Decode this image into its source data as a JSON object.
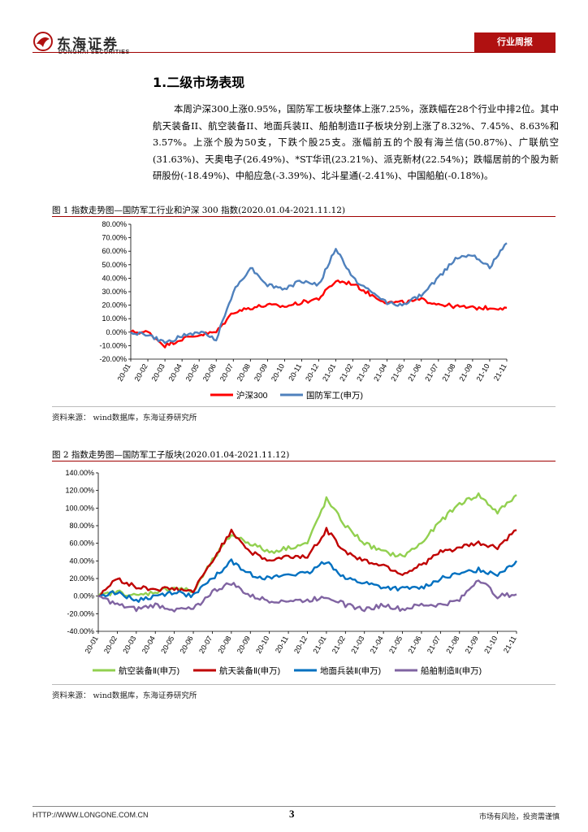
{
  "header": {
    "logo_cn": "东海证券",
    "logo_en": "DONGHAI SECURITIES",
    "tag": "行业周报"
  },
  "section": {
    "title": "1.二级市场表现",
    "paragraph": "本周沪深300上涨0.95%，国防军工板块整体上涨7.25%，涨跌幅在28个行业中排2位。其中航天装备II、航空装备II、地面兵装II、船舶制造II子板块分别上涨了8.32%、7.45%、8.63%和3.57%。上涨个股为50支，下跌个股25支。涨幅前五的个股有海兰信(50.87%)、广联航空(31.63%)、天奥电子(26.49%)、*ST华讯(23.21%)、派克新材(22.54%)；跌幅居前的个股为新研股份(-18.49%)、中船应急(-3.39%)、北斗星通(-2.41%)、中国船舶(-0.18%)。"
  },
  "figure1": {
    "title": "图 1  指数走势图—国防军工行业和沪深 300 指数(2020.01.04-2021.11.12)",
    "source": "资料来源：  wind数据库，东海证券研究所"
  },
  "figure2": {
    "title": "图 2  指数走势图—国防军工子版块(2020.01.04-2021.11.12)",
    "source": "资料来源：  wind数据库，东海证券研究所"
  },
  "chart_data": [
    {
      "type": "line",
      "title": "指数走势图—国防军工行业和沪深300指数",
      "ylim": [
        -20,
        80
      ],
      "yticks": [
        "-20.00%",
        "-10.00%",
        "0.00%",
        "10.00%",
        "20.00%",
        "30.00%",
        "40.00%",
        "50.00%",
        "60.00%",
        "70.00%",
        "80.00%"
      ],
      "categories": [
        "20-01",
        "20-02",
        "20-03",
        "20-04",
        "20-05",
        "20-06",
        "20-07",
        "20-08",
        "20-09",
        "20-10",
        "20-11",
        "20-12",
        "21-01",
        "21-02",
        "21-03",
        "21-04",
        "21-05",
        "21-06",
        "21-07",
        "21-08",
        "21-09",
        "21-10",
        "21-11"
      ],
      "colors": [
        "#ff0000",
        "#4f81bd"
      ],
      "series": [
        {
          "name": "沪深300",
          "values": [
            0,
            0,
            -10,
            -5,
            -2,
            0,
            15,
            18,
            20,
            19,
            22,
            25,
            38,
            36,
            28,
            22,
            22,
            24,
            21,
            19,
            18,
            18,
            18
          ]
        },
        {
          "name": "国防军工(申万)",
          "values": [
            0,
            -2,
            -8,
            -3,
            0,
            -5,
            30,
            48,
            35,
            32,
            38,
            35,
            62,
            40,
            30,
            22,
            20,
            28,
            40,
            55,
            58,
            48,
            66
          ]
        }
      ]
    },
    {
      "type": "line",
      "title": "指数走势图—国防军工子版块",
      "ylim": [
        -40,
        140
      ],
      "yticks": [
        "-40.00%",
        "-20.00%",
        "0.00%",
        "20.00%",
        "40.00%",
        "60.00%",
        "80.00%",
        "100.00%",
        "120.00%",
        "140.00%"
      ],
      "categories": [
        "20-01",
        "20-02",
        "20-03",
        "20-04",
        "20-05",
        "20-06",
        "20-07",
        "20-08",
        "20-09",
        "20-10",
        "20-11",
        "20-12",
        "21-01",
        "21-02",
        "21-03",
        "21-04",
        "21-05",
        "21-06",
        "21-07",
        "21-08",
        "21-09",
        "21-10",
        "21-11"
      ],
      "colors": [
        "#92d050",
        "#c00000",
        "#0070c0",
        "#8064a2"
      ],
      "series": [
        {
          "name": "航空装备Ⅱ(申万)",
          "values": [
            0,
            5,
            0,
            5,
            10,
            5,
            40,
            70,
            60,
            50,
            55,
            60,
            110,
            80,
            60,
            50,
            45,
            60,
            85,
            105,
            115,
            95,
            115
          ]
        },
        {
          "name": "航天装备Ⅱ(申万)",
          "values": [
            0,
            20,
            10,
            8,
            8,
            5,
            40,
            75,
            50,
            40,
            45,
            45,
            75,
            50,
            40,
            35,
            25,
            35,
            50,
            55,
            60,
            55,
            75
          ]
        },
        {
          "name": "地面兵装Ⅱ(申万)",
          "values": [
            0,
            5,
            -5,
            0,
            5,
            0,
            20,
            40,
            25,
            20,
            25,
            25,
            40,
            20,
            15,
            10,
            8,
            10,
            20,
            25,
            30,
            25,
            40
          ]
        },
        {
          "name": "船舶制造Ⅱ(申万)",
          "values": [
            0,
            -10,
            -15,
            -10,
            -15,
            -15,
            5,
            15,
            0,
            -5,
            -5,
            -5,
            0,
            -10,
            -15,
            -10,
            -15,
            -10,
            -10,
            -5,
            20,
            0,
            2
          ]
        }
      ]
    }
  ],
  "footer": {
    "url": "HTTP://WWW.LONGONE.COM.CN",
    "page": "3",
    "disclaimer": "市场有风险，投资需谨慎"
  }
}
